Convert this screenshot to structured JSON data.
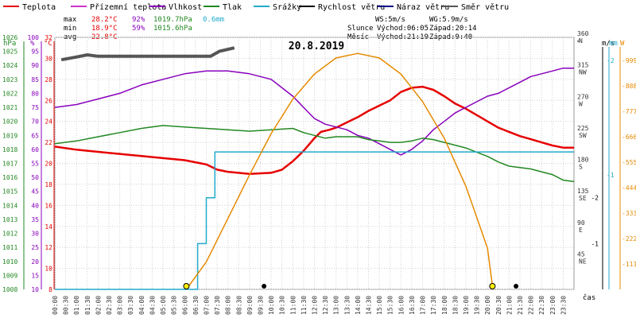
{
  "legend": [
    {
      "label": "Teplota",
      "color": "#e60000"
    },
    {
      "label": "Přízemní teplota",
      "color": "#cc33cc"
    },
    {
      "label": "Vlhkost",
      "color": "#8800bb"
    },
    {
      "label": "Tlak",
      "color": "#228822"
    },
    {
      "label": "Srážky",
      "color": "#22aacc"
    },
    {
      "label": "Rychlost větru",
      "color": "#000000"
    },
    {
      "label": "Náraz větru",
      "color": "#000088"
    },
    {
      "label": "Směr větru",
      "color": "#555555"
    }
  ],
  "stats": {
    "max_label": "max",
    "max_temp": "28.2°C",
    "max_hum": "92%",
    "max_press": "1019.7hPa",
    "rain": "0.6mm",
    "min_label": "min",
    "min_temp": "18.9°C",
    "min_hum": "59%",
    "min_press": "1015.6hPa",
    "avg_label": "avg",
    "avg_temp": "22.8°C"
  },
  "wind_stats": {
    "ws": "WS:5m/s",
    "wg": "WG:5.9m/s"
  },
  "sun": {
    "label": "Slunce",
    "rise": "Východ:06:05",
    "set": "Západ:20:14"
  },
  "moon": {
    "label": "Měsíc",
    "rise": "Východ:21:19",
    "set": "Západ:9:40"
  },
  "date": "20.8.2019",
  "axis_units": {
    "hpa": "hPa",
    "pct": "%",
    "degc": "°C",
    "deg": "°",
    "ms": "m/s",
    "mm": "mm",
    "w": "W",
    "time": "čas"
  },
  "colors": {
    "temp": "#e60000",
    "dew": "#cc33cc",
    "humidity": "#8800bb",
    "pressure": "#228822",
    "rain": "#22aacc",
    "wind": "#000000",
    "gust": "#000088",
    "dir": "#555555",
    "solar": "#e68a00",
    "grid": "#d0d0d0",
    "axis_text": "#333333"
  },
  "chart_data": {
    "type": "line",
    "title": "20.8.2019",
    "x_ticks": [
      "00:00",
      "00:30",
      "01:00",
      "01:30",
      "02:00",
      "02:30",
      "03:00",
      "03:30",
      "04:00",
      "04:30",
      "05:00",
      "05:30",
      "06:00",
      "06:30",
      "07:00",
      "07:30",
      "08:00",
      "08:30",
      "09:00",
      "09:30",
      "10:00",
      "10:30",
      "11:00",
      "11:30",
      "12:00",
      "12:30",
      "13:00",
      "13:30",
      "14:00",
      "14:30",
      "15:00",
      "15:30",
      "16:00",
      "16:30",
      "17:00",
      "17:30",
      "18:00",
      "18:30",
      "19:00",
      "19:30",
      "20:00",
      "20:30",
      "21:00",
      "21:30",
      "22:00",
      "22:30",
      "23:00",
      "23:30"
    ],
    "axes": {
      "pressure": {
        "min": 1008,
        "max": 1026,
        "ticks": [
          1008,
          1009,
          1010,
          1011,
          1012,
          1013,
          1014,
          1015,
          1016,
          1017,
          1018,
          1019,
          1020,
          1021,
          1022,
          1023,
          1024,
          1025,
          1026
        ]
      },
      "humidity": {
        "min": 10,
        "max": 100,
        "ticks": [
          10,
          15,
          20,
          25,
          30,
          35,
          40,
          45,
          50,
          55,
          60,
          65,
          70,
          75,
          80,
          85,
          90,
          95,
          100
        ]
      },
      "temperature": {
        "min": 8,
        "max": 32,
        "ticks": [
          8,
          10,
          12,
          14,
          16,
          18,
          20,
          22,
          24,
          26,
          28,
          30,
          32
        ]
      },
      "direction": {
        "ticks": [
          {
            "deg": "45",
            "dir": "NE",
            "v": 45
          },
          {
            "deg": "90",
            "dir": "E",
            "v": 90
          },
          {
            "deg": "135",
            "dir": "SE",
            "v": 135
          },
          {
            "deg": "180",
            "dir": "S",
            "v": 180
          },
          {
            "deg": "225",
            "dir": "SW",
            "v": 225
          },
          {
            "deg": "270",
            "dir": "W",
            "v": 270
          },
          {
            "deg": "315",
            "dir": "NW",
            "v": 315
          },
          {
            "deg": "360",
            "dir": "N",
            "v": 360
          }
        ],
        "min": 0,
        "max": 360
      },
      "wind": {
        "min": 0,
        "max": 5.5,
        "ticks": [
          1,
          2
        ]
      },
      "rain": {
        "min": 0,
        "max": 1.1,
        "ticks": [
          1,
          2
        ]
      },
      "solar": {
        "min": 0,
        "max": 1100,
        "ticks": [
          111,
          222,
          333,
          444,
          555,
          666,
          777,
          888,
          999
        ]
      }
    },
    "series": [
      {
        "name": "Teplota",
        "unit": "°C",
        "points": [
          [
            0,
            21.6
          ],
          [
            1,
            21.3
          ],
          [
            2,
            21.1
          ],
          [
            3,
            20.9
          ],
          [
            4,
            20.7
          ],
          [
            5,
            20.5
          ],
          [
            6,
            20.3
          ],
          [
            7,
            19.9
          ],
          [
            7.5,
            19.4
          ],
          [
            8,
            19.2
          ],
          [
            9,
            19.0
          ],
          [
            10,
            19.1
          ],
          [
            10.5,
            19.4
          ],
          [
            11,
            20.2
          ],
          [
            11.5,
            21.2
          ],
          [
            12,
            22.4
          ],
          [
            12.3,
            23.0
          ],
          [
            12.7,
            23.2
          ],
          [
            13,
            23.4
          ],
          [
            13.5,
            23.9
          ],
          [
            14,
            24.4
          ],
          [
            14.5,
            25.0
          ],
          [
            15,
            25.5
          ],
          [
            15.5,
            26.0
          ],
          [
            16,
            26.8
          ],
          [
            16.5,
            27.2
          ],
          [
            17,
            27.3
          ],
          [
            17.5,
            27.0
          ],
          [
            18,
            26.4
          ],
          [
            18.5,
            25.7
          ],
          [
            19,
            25.2
          ],
          [
            19.5,
            24.6
          ],
          [
            20,
            24.0
          ],
          [
            20.5,
            23.4
          ],
          [
            21,
            23.0
          ],
          [
            21.5,
            22.6
          ],
          [
            22,
            22.3
          ],
          [
            22.5,
            22.0
          ],
          [
            23,
            21.7
          ],
          [
            23.5,
            21.5
          ],
          [
            24,
            21.5
          ]
        ]
      },
      {
        "name": "Vlhkost",
        "unit": "%",
        "points": [
          [
            0,
            75
          ],
          [
            1,
            76
          ],
          [
            2,
            78
          ],
          [
            3,
            80
          ],
          [
            4,
            83
          ],
          [
            5,
            85
          ],
          [
            6,
            87
          ],
          [
            7,
            88
          ],
          [
            8,
            88
          ],
          [
            9,
            87
          ],
          [
            10,
            85
          ],
          [
            10.5,
            82
          ],
          [
            11,
            79
          ],
          [
            11.5,
            75
          ],
          [
            12,
            71
          ],
          [
            12.5,
            69
          ],
          [
            13,
            68
          ],
          [
            13.5,
            67
          ],
          [
            14,
            65
          ],
          [
            14.5,
            64
          ],
          [
            15,
            62
          ],
          [
            15.5,
            60
          ],
          [
            16,
            58
          ],
          [
            16.5,
            60
          ],
          [
            17,
            63
          ],
          [
            17.5,
            67
          ],
          [
            18,
            70
          ],
          [
            18.5,
            73
          ],
          [
            19,
            75
          ],
          [
            19.5,
            77
          ],
          [
            20,
            79
          ],
          [
            20.5,
            80
          ],
          [
            21,
            82
          ],
          [
            21.5,
            84
          ],
          [
            22,
            86
          ],
          [
            22.5,
            87
          ],
          [
            23,
            88
          ],
          [
            23.5,
            89
          ],
          [
            24,
            89
          ]
        ]
      },
      {
        "name": "Tlak",
        "unit": "hPa",
        "points": [
          [
            0,
            1018.4
          ],
          [
            1,
            1018.6
          ],
          [
            2,
            1018.9
          ],
          [
            3,
            1019.2
          ],
          [
            4,
            1019.5
          ],
          [
            5,
            1019.7
          ],
          [
            6,
            1019.6
          ],
          [
            7,
            1019.5
          ],
          [
            8,
            1019.4
          ],
          [
            9,
            1019.3
          ],
          [
            10,
            1019.4
          ],
          [
            11,
            1019.5
          ],
          [
            11.5,
            1019.2
          ],
          [
            12,
            1019.0
          ],
          [
            12.5,
            1018.8
          ],
          [
            13,
            1018.9
          ],
          [
            14,
            1018.9
          ],
          [
            14.5,
            1018.7
          ],
          [
            15,
            1018.6
          ],
          [
            15.5,
            1018.5
          ],
          [
            16,
            1018.5
          ],
          [
            16.5,
            1018.6
          ],
          [
            17,
            1018.8
          ],
          [
            17.5,
            1018.7
          ],
          [
            18,
            1018.5
          ],
          [
            18.5,
            1018.3
          ],
          [
            19,
            1018.1
          ],
          [
            19.5,
            1017.8
          ],
          [
            20,
            1017.5
          ],
          [
            20.5,
            1017.1
          ],
          [
            21,
            1016.8
          ],
          [
            21.5,
            1016.7
          ],
          [
            22,
            1016.6
          ],
          [
            22.5,
            1016.4
          ],
          [
            23,
            1016.2
          ],
          [
            23.5,
            1015.8
          ],
          [
            24,
            1015.7
          ]
        ]
      },
      {
        "name": "Srážky",
        "unit": "mm",
        "points": [
          [
            0,
            0
          ],
          [
            6.6,
            0
          ],
          [
            6.6,
            0.2
          ],
          [
            7.0,
            0.2
          ],
          [
            7.0,
            0.4
          ],
          [
            7.4,
            0.4
          ],
          [
            7.4,
            0.6
          ],
          [
            24,
            0.6
          ]
        ]
      },
      {
        "name": "Směr větru",
        "unit": "°",
        "points": [
          [
            0.3,
            328
          ],
          [
            1.0,
            332
          ],
          [
            1.5,
            335
          ],
          [
            2.0,
            333
          ],
          [
            7.2,
            333
          ],
          [
            7.6,
            340
          ],
          [
            8.3,
            345
          ]
        ]
      },
      {
        "name": "Solar",
        "unit": "W",
        "points": [
          [
            6.08,
            0
          ],
          [
            7,
            120
          ],
          [
            8,
            310
          ],
          [
            9,
            500
          ],
          [
            10,
            680
          ],
          [
            11,
            830
          ],
          [
            12,
            940
          ],
          [
            13,
            1010
          ],
          [
            14,
            1030
          ],
          [
            15,
            1010
          ],
          [
            16,
            940
          ],
          [
            17,
            820
          ],
          [
            18,
            660
          ],
          [
            19,
            450
          ],
          [
            20,
            180
          ],
          [
            20.25,
            0
          ]
        ]
      }
    ]
  }
}
